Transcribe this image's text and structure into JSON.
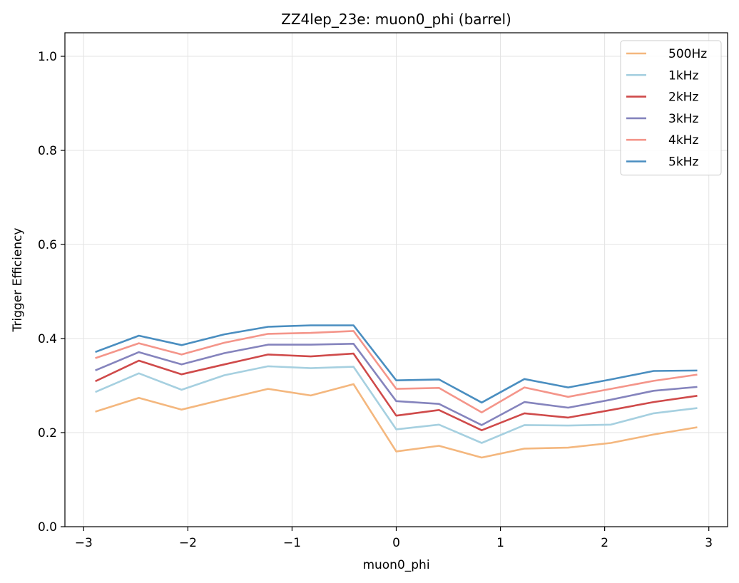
{
  "chart_data": {
    "type": "line",
    "title": "ZZ4lep_23e: muon0_phi (barrel)",
    "xlabel": "muon0_phi",
    "ylabel": "Trigger Efficiency",
    "xlim": [
      -3.18,
      3.18
    ],
    "ylim": [
      0.0,
      1.05
    ],
    "xticks": [
      -3,
      -2,
      -1,
      0,
      1,
      2,
      3
    ],
    "xtick_labels": [
      "−3",
      "−2",
      "−1",
      "0",
      "1",
      "2",
      "3"
    ],
    "yticks": [
      0.0,
      0.2,
      0.4,
      0.6,
      0.8,
      1.0
    ],
    "ytick_labels": [
      "0.0",
      "0.2",
      "0.4",
      "0.6",
      "0.8",
      "1.0"
    ],
    "grid": true,
    "legend_position": "top-right",
    "x": [
      -2.88,
      -2.47,
      -2.06,
      -1.65,
      -1.23,
      -0.82,
      -0.41,
      0.0,
      0.41,
      0.82,
      1.23,
      1.65,
      2.06,
      2.47,
      2.88
    ],
    "series": [
      {
        "name": "500Hz",
        "color": "#f4b77e",
        "values": [
          0.245,
          0.274,
          0.249,
          0.271,
          0.293,
          0.279,
          0.303,
          0.16,
          0.172,
          0.147,
          0.166,
          0.168,
          0.178,
          0.196,
          0.211
        ]
      },
      {
        "name": "1kHz",
        "color": "#a6d0e0",
        "values": [
          0.287,
          0.326,
          0.291,
          0.322,
          0.341,
          0.337,
          0.34,
          0.207,
          0.217,
          0.178,
          0.216,
          0.215,
          0.217,
          0.241,
          0.252
        ]
      },
      {
        "name": "2kHz",
        "color": "#cf4a4a",
        "values": [
          0.31,
          0.353,
          0.324,
          0.345,
          0.366,
          0.362,
          0.368,
          0.236,
          0.248,
          0.205,
          0.241,
          0.232,
          0.248,
          0.265,
          0.278
        ]
      },
      {
        "name": "3kHz",
        "color": "#8584bd",
        "values": [
          0.333,
          0.371,
          0.345,
          0.369,
          0.387,
          0.387,
          0.389,
          0.267,
          0.261,
          0.216,
          0.265,
          0.253,
          0.27,
          0.289,
          0.297
        ]
      },
      {
        "name": "4kHz",
        "color": "#f4958a",
        "values": [
          0.359,
          0.39,
          0.366,
          0.391,
          0.41,
          0.412,
          0.416,
          0.293,
          0.295,
          0.243,
          0.296,
          0.276,
          0.293,
          0.31,
          0.323
        ]
      },
      {
        "name": "5kHz",
        "color": "#4a8ec0",
        "values": [
          0.372,
          0.406,
          0.386,
          0.409,
          0.425,
          0.428,
          0.428,
          0.311,
          0.313,
          0.264,
          0.314,
          0.296,
          0.313,
          0.331,
          0.332
        ]
      }
    ]
  }
}
